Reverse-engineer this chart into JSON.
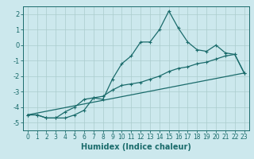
{
  "title": "",
  "xlabel": "Humidex (Indice chaleur)",
  "bg_color": "#cce8ed",
  "grid_color": "#aacccc",
  "line_color": "#1a6b6b",
  "xlim": [
    -0.5,
    23.5
  ],
  "ylim": [
    -5.5,
    2.5
  ],
  "xticks": [
    0,
    1,
    2,
    3,
    4,
    5,
    6,
    7,
    8,
    9,
    10,
    11,
    12,
    13,
    14,
    15,
    16,
    17,
    18,
    19,
    20,
    21,
    22,
    23
  ],
  "yticks": [
    -5,
    -4,
    -3,
    -2,
    -1,
    0,
    1,
    2
  ],
  "line1_x": [
    0,
    1,
    2,
    3,
    4,
    5,
    6,
    7,
    8,
    9,
    10,
    11,
    12,
    13,
    14,
    15,
    16,
    17,
    18,
    19,
    20,
    21,
    22,
    23
  ],
  "line1_y": [
    -4.5,
    -4.5,
    -4.7,
    -4.7,
    -4.7,
    -4.5,
    -4.2,
    -3.4,
    -3.5,
    -2.2,
    -1.2,
    -0.7,
    0.2,
    0.2,
    1.0,
    2.2,
    1.1,
    0.2,
    -0.3,
    -0.4,
    0.0,
    -0.5,
    -0.6,
    -1.8
  ],
  "line2_x": [
    0,
    1,
    2,
    3,
    4,
    5,
    6,
    7,
    8,
    9,
    10,
    11,
    12,
    13,
    14,
    15,
    16,
    17,
    18,
    19,
    20,
    21,
    22,
    23
  ],
  "line2_y": [
    -4.5,
    -4.5,
    -4.7,
    -4.7,
    -4.3,
    -4.0,
    -3.5,
    -3.4,
    -3.3,
    -2.9,
    -2.6,
    -2.5,
    -2.4,
    -2.2,
    -2.0,
    -1.7,
    -1.5,
    -1.4,
    -1.2,
    -1.1,
    -0.9,
    -0.7,
    -0.6,
    -1.8
  ],
  "line3_x": [
    0,
    23
  ],
  "line3_y": [
    -4.5,
    -1.8
  ]
}
